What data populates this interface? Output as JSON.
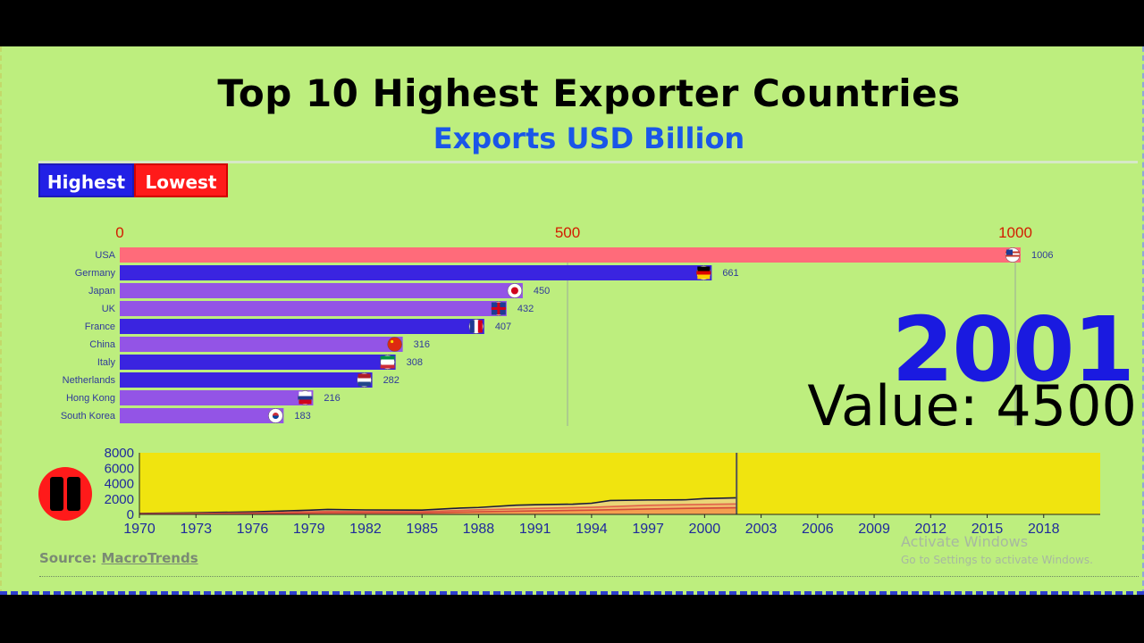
{
  "header": {
    "title": "Top 10 Highest Exporter Countries",
    "subtitle": "Exports USD Billion"
  },
  "toggle": {
    "highest_label": "Highest",
    "lowest_label": "Lowest"
  },
  "overlay": {
    "year": "2001",
    "value_text": "Value: 4500"
  },
  "source": {
    "prefix": "Source:",
    "name": "MacroTrends"
  },
  "watermark": {
    "line1": "Activate Windows",
    "line2": "Go to Settings to activate Windows."
  },
  "colors": {
    "background": "#bdee7e",
    "purple_bar": "#9354e6",
    "blue_bar": "#3a24e0",
    "top_bar": "#ff6b7a",
    "timeline_bg": "#f0e40f",
    "axis_tick": "#d31c00",
    "tl_ticks": "#1f2a9c"
  },
  "chart_data": [
    {
      "type": "bar",
      "orientation": "horizontal",
      "categories": [
        "USA",
        "Germany",
        "Japan",
        "UK",
        "France",
        "China",
        "Italy",
        "Netherlands",
        "Hong Kong",
        "South Korea"
      ],
      "values": [
        1006,
        661,
        450,
        432,
        407,
        316,
        308,
        282,
        216,
        183
      ],
      "value_labels": [
        "1006",
        "661",
        "450",
        "432",
        "407",
        "316",
        "308",
        "282",
        "216",
        "183"
      ],
      "bar_colors": [
        "#ff6b7a",
        "#3a24e0",
        "#9354e6",
        "#9354e6",
        "#3a24e0",
        "#9354e6",
        "#3a24e0",
        "#3a24e0",
        "#9354e6",
        "#9354e6"
      ],
      "flag_icons": [
        "usa-flag-icon",
        "germany-flag-icon",
        "japan-flag-icon",
        "uk-flag-icon",
        "france-flag-icon",
        "china-flag-icon",
        "italy-flag-icon",
        "netherlands-flag-icon",
        "hong-kong-flag-icon",
        "south-korea-flag-icon"
      ],
      "xticks": [
        0,
        500,
        1000
      ],
      "xlim": [
        0,
        1000
      ],
      "grid": true
    },
    {
      "type": "area",
      "x_ticks": [
        "1970",
        "1973",
        "1976",
        "1979",
        "1982",
        "1985",
        "1988",
        "1991",
        "1994",
        "1997",
        "2000",
        "2003",
        "2006",
        "2009",
        "2012",
        "2015",
        "2018"
      ],
      "y_ticks": [
        "0",
        "2000",
        "4000",
        "6000",
        "8000"
      ],
      "ylim": [
        0,
        8000
      ],
      "xlim": [
        1970,
        2021
      ],
      "current_year": 2001.7,
      "series": [
        {
          "x": [
            1970,
            1973,
            1976,
            1979,
            1980,
            1982,
            1985,
            1987,
            1988,
            1990,
            1991,
            1993,
            1994,
            1995,
            1997,
            1999,
            2000,
            2001.7
          ],
          "y": [
            130,
            210,
            330,
            540,
            640,
            580,
            560,
            820,
            900,
            1200,
            1250,
            1330,
            1450,
            1800,
            1870,
            1900,
            2050,
            2150
          ]
        },
        {
          "x": [
            1970,
            1976,
            1980,
            1985,
            1988,
            1991,
            1994,
            1997,
            2000,
            2001.7
          ],
          "y": [
            60,
            180,
            380,
            350,
            600,
            780,
            920,
            1180,
            1300,
            1350
          ]
        },
        {
          "x": [
            1970,
            1976,
            1980,
            1985,
            1988,
            1991,
            1994,
            1997,
            2000,
            2001.7
          ],
          "y": [
            30,
            90,
            200,
            200,
            340,
            460,
            560,
            700,
            820,
            860
          ]
        }
      ]
    }
  ]
}
